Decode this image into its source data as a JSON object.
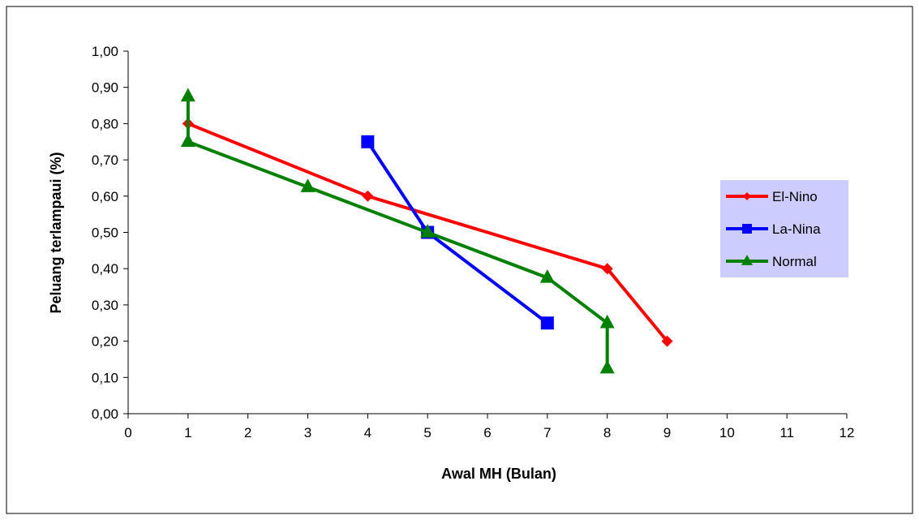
{
  "chart_data": {
    "type": "line",
    "title": "",
    "xlabel": "Awal  MH (Bulan)",
    "ylabel": "Peluang  terlampaui  (%)",
    "xlim": [
      0,
      12
    ],
    "ylim": [
      0,
      1
    ],
    "xticks": [
      "0",
      "1",
      "2",
      "3",
      "4",
      "5",
      "6",
      "7",
      "8",
      "9",
      "10",
      "11",
      "12"
    ],
    "yticks": [
      "0,00",
      "0,10",
      "0,20",
      "0,30",
      "0,40",
      "0,50",
      "0,60",
      "0,70",
      "0,80",
      "0,90",
      "1,00"
    ],
    "grid": false,
    "legend_position": "right",
    "legend_background": "#ccccff",
    "series": [
      {
        "name": "El-Nino",
        "color": "#ff0000",
        "marker": "diamond",
        "points": [
          [
            1,
            0.8
          ],
          [
            4,
            0.6
          ],
          [
            8,
            0.4
          ],
          [
            9,
            0.2
          ]
        ]
      },
      {
        "name": "La-Nina",
        "color": "#0000ff",
        "marker": "square",
        "points": [
          [
            4,
            0.75
          ],
          [
            5,
            0.5
          ],
          [
            7,
            0.25
          ]
        ]
      },
      {
        "name": "Normal",
        "color": "#008000",
        "marker": "triangle",
        "points": [
          [
            1,
            0.875
          ],
          [
            1,
            0.75
          ],
          [
            3,
            0.625
          ],
          [
            5,
            0.5
          ],
          [
            7,
            0.375
          ],
          [
            8,
            0.25
          ],
          [
            8,
            0.125
          ]
        ]
      }
    ]
  }
}
